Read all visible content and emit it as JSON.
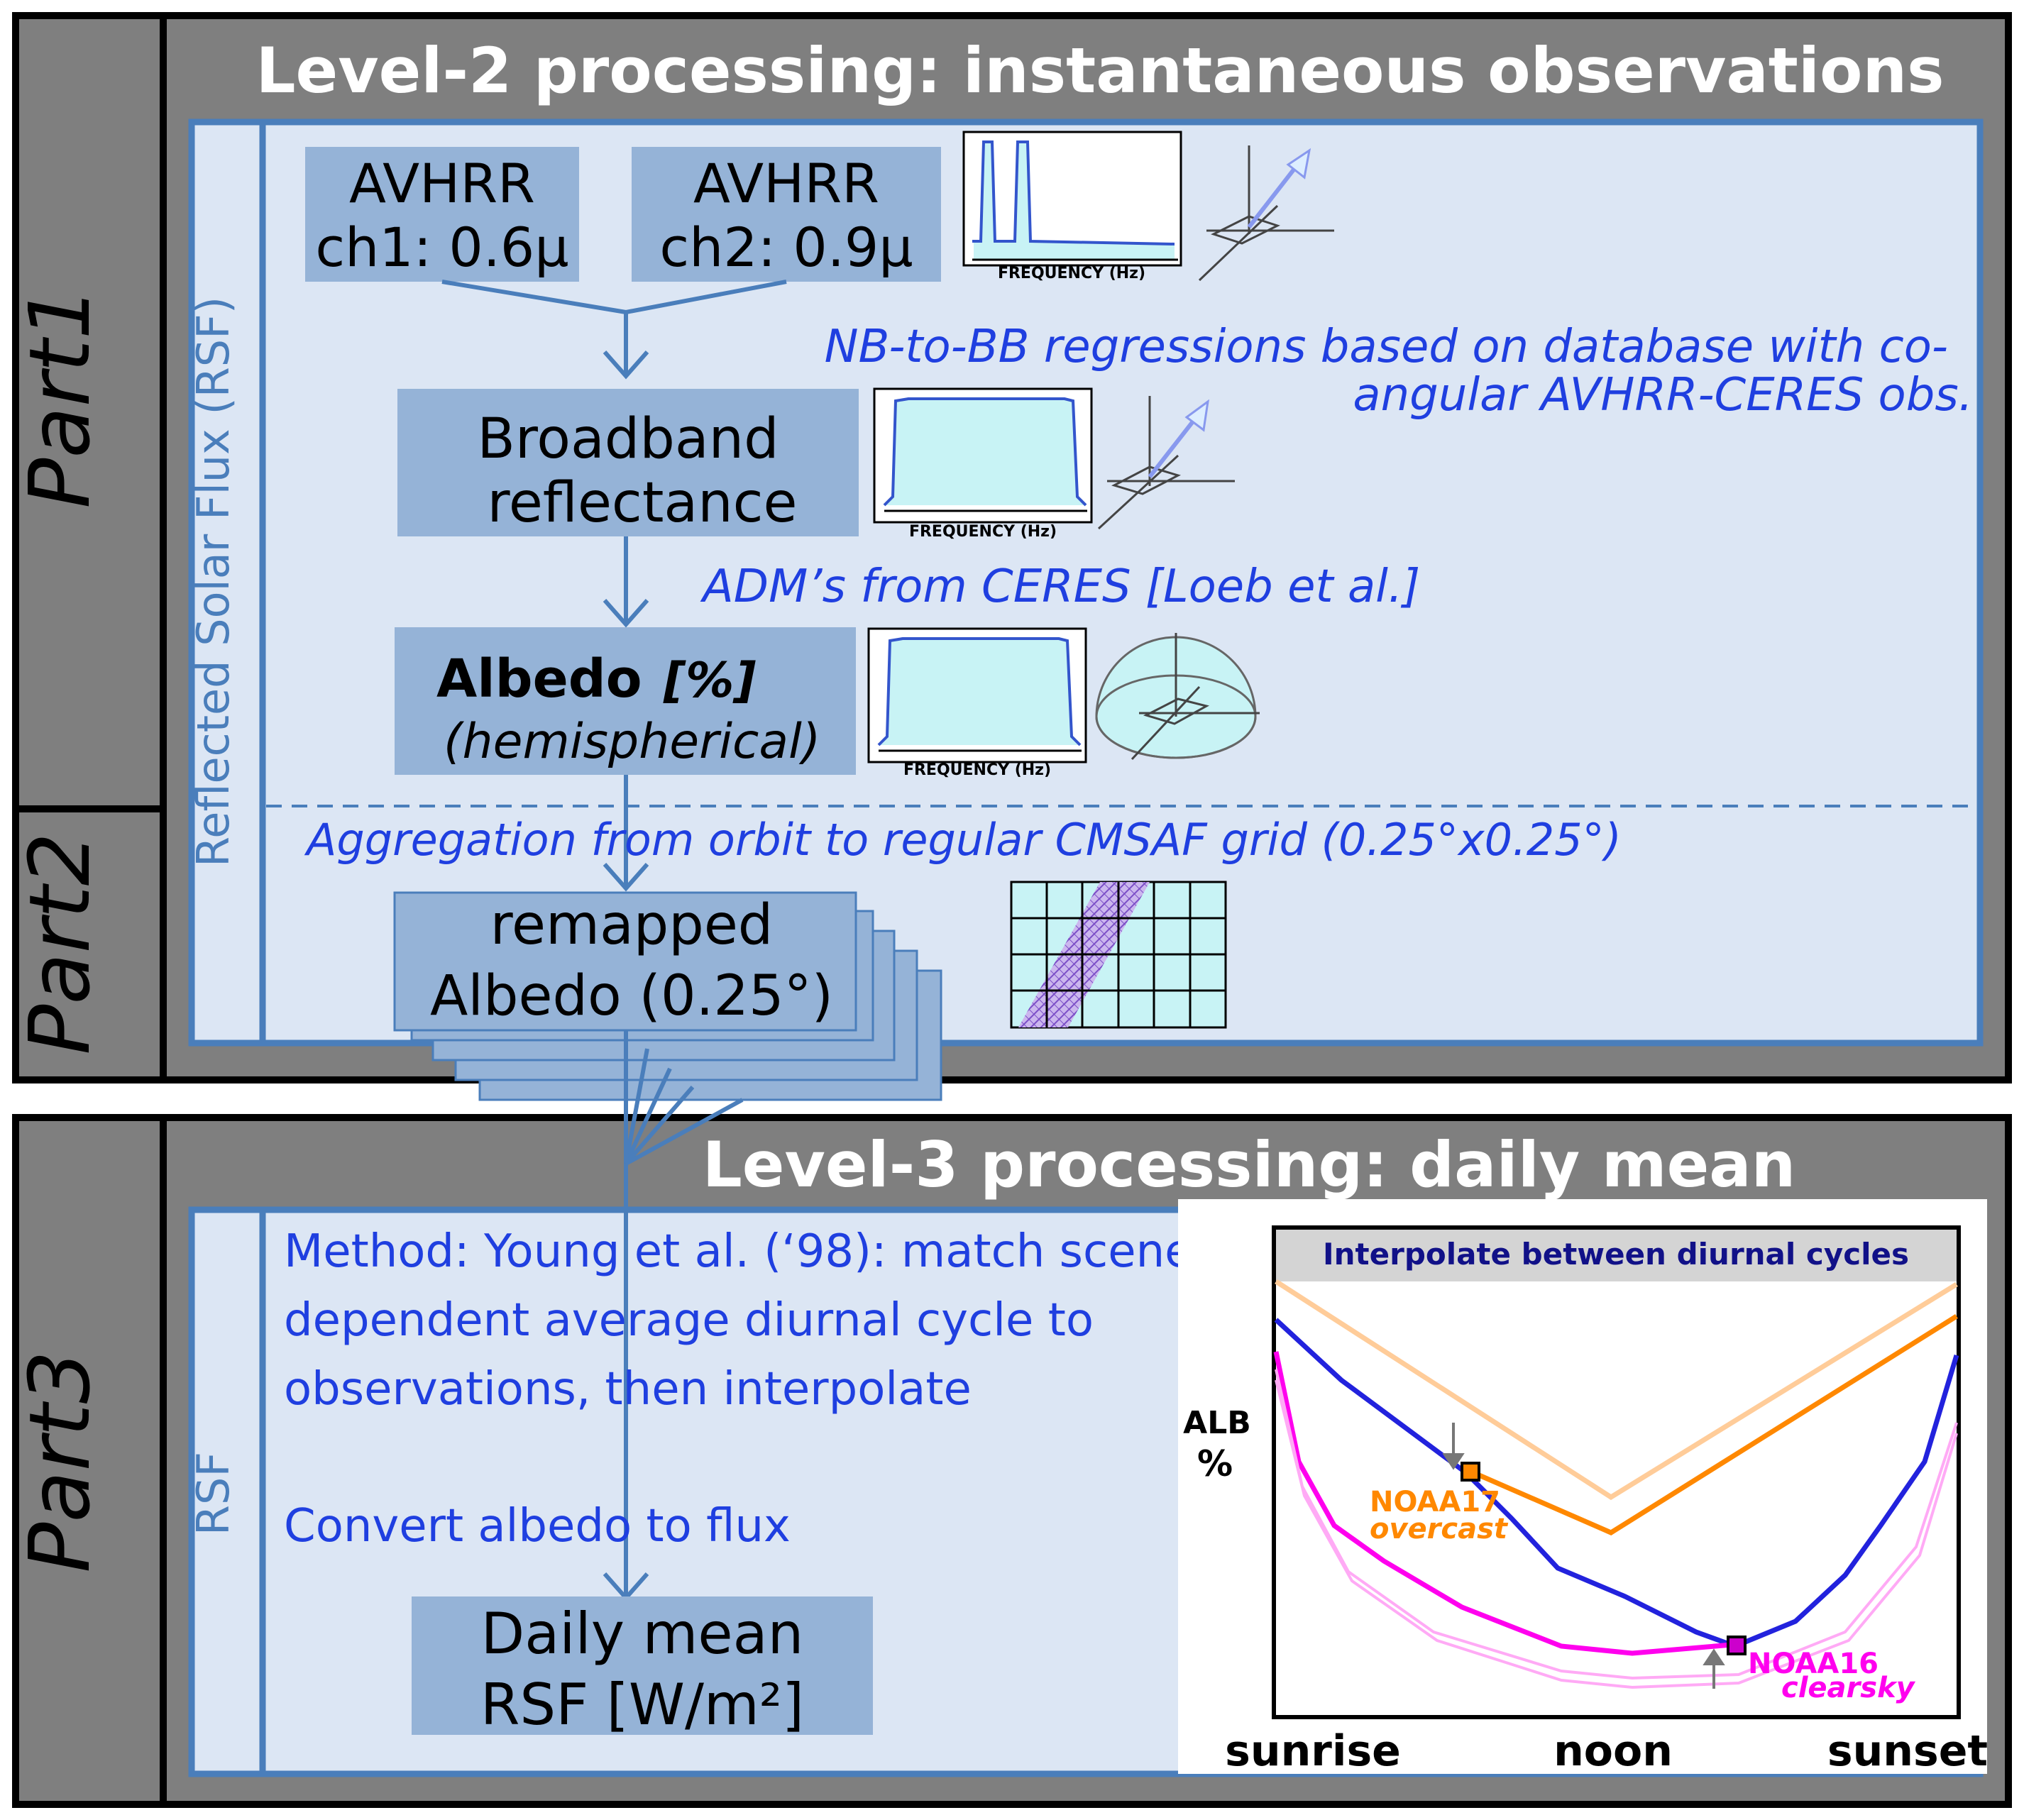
{
  "parts": {
    "part1": "Part1",
    "part2": "Part2",
    "part3": "Part3"
  },
  "level2": {
    "title": "Level-2 processing: instantaneous observations",
    "side_label": "Reflected Solar Flux (RSF)",
    "ch1": {
      "line1": "AVHRR",
      "line2": "ch1: 0.6μ"
    },
    "ch2": {
      "line1": "AVHRR",
      "line2": "ch2: 0.9μ"
    },
    "freq_label": "FREQUENCY (Hz)",
    "nb_to_bb": {
      "line1": "NB-to-BB regressions based on database with co-",
      "line2": "angular AVHRR-CERES obs."
    },
    "broadband": {
      "line1": "Broadband",
      "line2": "reflectance"
    },
    "adm": "ADM’s from CERES [Loeb et al.]",
    "albedo": {
      "line1_bold": "Albedo",
      "line1_unit": "[%]",
      "line2": "(hemispherical)"
    },
    "aggregation": "Aggregation from orbit to regular CMSAF grid (0.25°x0.25°)",
    "remapped": {
      "line1": "remapped",
      "line2": "Albedo (0.25°)"
    }
  },
  "level3": {
    "title": "Level-3 processing: daily mean",
    "side_label": "RSF",
    "method": {
      "line1": "Method: Young et al. (‘98): match scene-",
      "line2": "dependent average diurnal cycle to",
      "line3": "observations, then interpolate"
    },
    "convert": "Convert albedo to flux",
    "daily": {
      "line1": "Daily mean",
      "line2": "RSF [W/m²]"
    }
  },
  "inset": {
    "title": "Interpolate between diurnal cycles",
    "ylabel_line1": "ALB",
    "ylabel_line2": "%",
    "x_labels": [
      "sunrise",
      "noon",
      "sunset"
    ],
    "noaa17": {
      "name": "NOAA17",
      "sub": "overcast"
    },
    "noaa16": {
      "name": "NOAA16",
      "sub": "clearsky"
    },
    "colors": {
      "light_orange": "#ffcc99",
      "orange": "#ff8800",
      "blue": "#2222dd",
      "magenta": "#ff00ee",
      "light_magenta": "#ffaaf5"
    }
  },
  "colors": {
    "panel_gray": "#7f7f7f",
    "panel_light": "#dce6f4",
    "box_fill": "#95b3d7",
    "arrow": "#4a7ebb",
    "annotation": "#1f3fe0"
  }
}
